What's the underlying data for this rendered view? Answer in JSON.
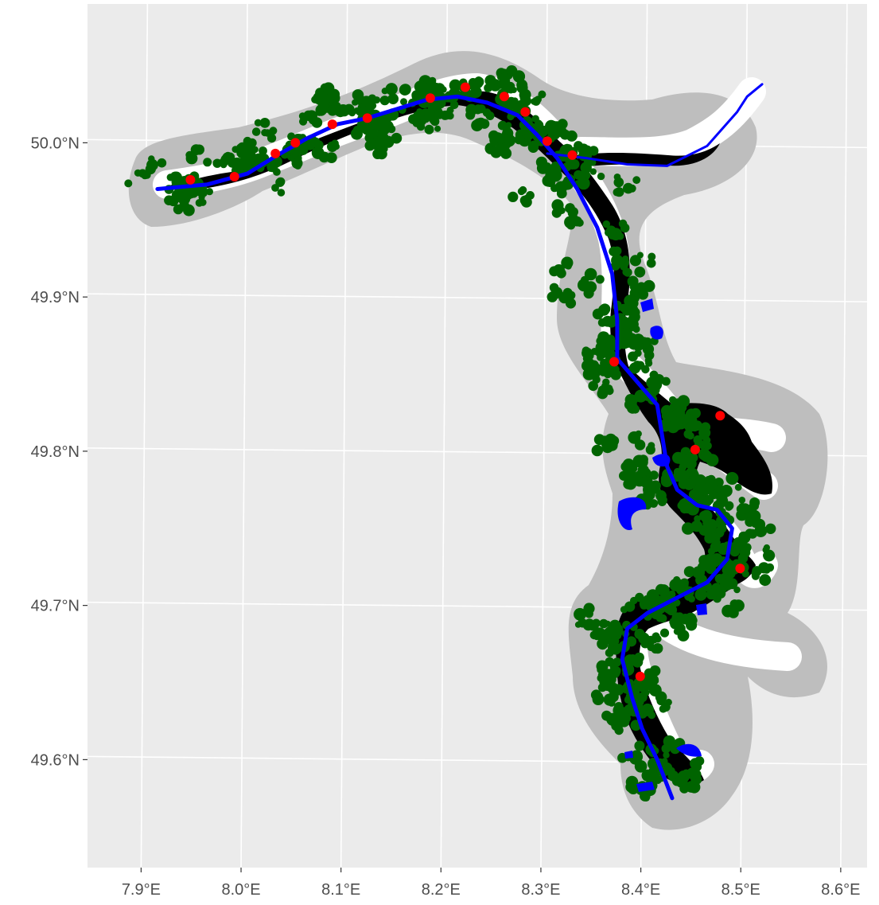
{
  "map": {
    "lon_range": [
      7.84,
      8.62
    ],
    "lat_range": [
      49.53,
      50.09
    ],
    "colors": {
      "panel": "#EBEBEB",
      "grid": "#FFFFFF",
      "buffer": "#BEBEBE",
      "buffer_inner": "#FFFFFF",
      "floodplain": "#000000",
      "river": "#0000FF",
      "vegetation": "#006400",
      "points": "#FF0000",
      "tick_text": "#4D4D4D"
    },
    "x_ticks": [
      {
        "value": 7.9,
        "label": "7.9°E"
      },
      {
        "value": 8.0,
        "label": "8.0°E"
      },
      {
        "value": 8.1,
        "label": "8.1°E"
      },
      {
        "value": 8.2,
        "label": "8.2°E"
      },
      {
        "value": 8.3,
        "label": "8.3°E"
      },
      {
        "value": 8.4,
        "label": "8.4°E"
      },
      {
        "value": 8.5,
        "label": "8.5°E"
      },
      {
        "value": 8.6,
        "label": "8.6°E"
      }
    ],
    "y_ticks": [
      {
        "value": 50.0,
        "label": "50.0°N"
      },
      {
        "value": 49.9,
        "label": "49.9°N"
      },
      {
        "value": 49.8,
        "label": "49.8°N"
      },
      {
        "value": 49.7,
        "label": "49.7°N"
      },
      {
        "value": 49.6,
        "label": "49.6°N"
      }
    ],
    "river_path": [
      [
        7.91,
        49.97
      ],
      [
        7.96,
        49.973
      ],
      [
        8.0,
        49.98
      ],
      [
        8.03,
        49.992
      ],
      [
        8.06,
        50.003
      ],
      [
        8.09,
        50.012
      ],
      [
        8.12,
        50.016
      ],
      [
        8.15,
        50.022
      ],
      [
        8.18,
        50.028
      ],
      [
        8.21,
        50.03
      ],
      [
        8.24,
        50.026
      ],
      [
        8.27,
        50.018
      ],
      [
        8.29,
        50.005
      ],
      [
        8.31,
        49.99
      ],
      [
        8.33,
        49.97
      ],
      [
        8.35,
        49.945
      ],
      [
        8.365,
        49.915
      ],
      [
        8.37,
        49.885
      ],
      [
        8.37,
        49.86
      ],
      [
        8.39,
        49.845
      ],
      [
        8.41,
        49.83
      ],
      [
        8.415,
        49.81
      ],
      [
        8.42,
        49.79
      ],
      [
        8.43,
        49.775
      ],
      [
        8.45,
        49.765
      ],
      [
        8.47,
        49.762
      ],
      [
        8.485,
        49.75
      ],
      [
        8.48,
        49.73
      ],
      [
        8.46,
        49.715
      ],
      [
        8.43,
        49.705
      ],
      [
        8.4,
        49.695
      ],
      [
        8.38,
        49.685
      ],
      [
        8.375,
        49.665
      ],
      [
        8.385,
        49.64
      ],
      [
        8.395,
        49.62
      ],
      [
        8.41,
        49.6
      ],
      [
        8.425,
        49.575
      ]
    ],
    "tributary_path": [
      [
        8.3,
        49.993
      ],
      [
        8.34,
        49.99
      ],
      [
        8.38,
        49.986
      ],
      [
        8.42,
        49.985
      ],
      [
        8.46,
        49.998
      ],
      [
        8.49,
        50.02
      ],
      [
        8.5,
        50.03
      ],
      [
        8.515,
        50.038
      ]
    ],
    "red_points": [
      [
        7.943,
        49.976
      ],
      [
        7.987,
        49.978
      ],
      [
        8.028,
        49.993
      ],
      [
        8.048,
        50.0
      ],
      [
        8.085,
        50.012
      ],
      [
        8.12,
        50.016
      ],
      [
        8.183,
        50.029
      ],
      [
        8.218,
        50.036
      ],
      [
        8.257,
        50.03
      ],
      [
        8.278,
        50.02
      ],
      [
        8.3,
        50.001
      ],
      [
        8.325,
        49.992
      ],
      [
        8.367,
        49.858
      ],
      [
        8.473,
        49.823
      ],
      [
        8.448,
        49.801
      ],
      [
        8.493,
        49.724
      ],
      [
        8.393,
        49.654
      ]
    ]
  }
}
